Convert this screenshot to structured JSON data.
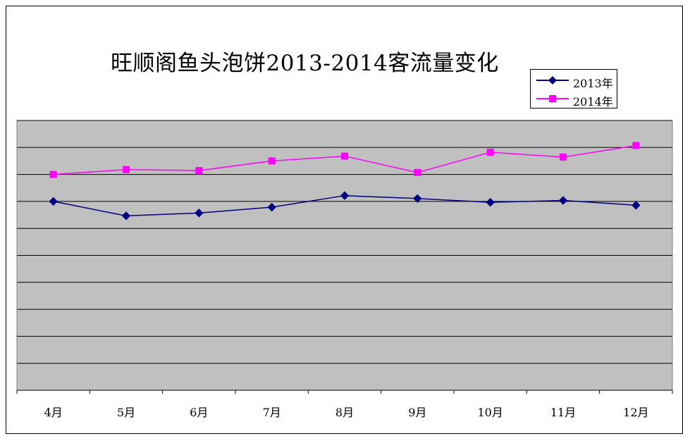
{
  "chart_data": {
    "type": "line",
    "title": "旺顺阁鱼头泡饼2013-2014客流量变化",
    "categories": [
      "4月",
      "5月",
      "6月",
      "7月",
      "8月",
      "9月",
      "10月",
      "11月",
      "12月"
    ],
    "series": [
      {
        "name": "2013年",
        "values": [
          5.8,
          5.05,
          5.2,
          5.5,
          6.1,
          5.95,
          5.75,
          5.85,
          5.6
        ],
        "color": "#000080",
        "marker": "diamond"
      },
      {
        "name": "2014年",
        "values": [
          7.2,
          7.45,
          7.4,
          7.9,
          8.15,
          7.3,
          8.35,
          8.1,
          8.7
        ],
        "color": "#ff00ff",
        "marker": "square"
      }
    ],
    "ylim": [
      -4,
      10
    ],
    "y_gridlines": 10,
    "y_tick_labels_visible": false,
    "grid": true,
    "legend_position": "top-right",
    "plot_background": "#c0c0c0"
  }
}
